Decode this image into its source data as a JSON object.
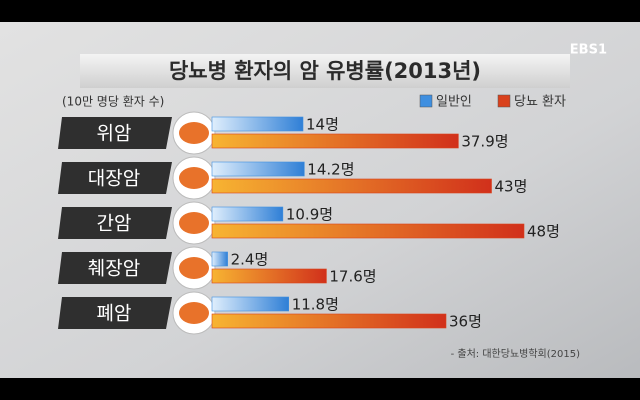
{
  "chart_data": {
    "type": "bar",
    "orientation": "horizontal",
    "title": "당뇨병 환자의 암 유병률(2013년)",
    "unit_label": "(10만 명당 환자 수)",
    "source": "- 출처: 대한당뇨병학회(2015)",
    "logo": "EBS1",
    "categories": [
      "위암",
      "대장암",
      "간암",
      "췌장암",
      "폐암"
    ],
    "series": [
      {
        "name": "일반인",
        "color": "#3f8fe0",
        "values": [
          14,
          14.2,
          10.9,
          2.4,
          11.8
        ],
        "value_labels": [
          "14명",
          "14.2명",
          "10.9명",
          "2.4명",
          "11.8명"
        ]
      },
      {
        "name": "당뇨 환자",
        "color": "#d9411c",
        "values": [
          37.9,
          43,
          48,
          17.6,
          36
        ],
        "value_labels": [
          "37.9명",
          "43명",
          "48명",
          "17.6명",
          "36명"
        ]
      }
    ]
  }
}
